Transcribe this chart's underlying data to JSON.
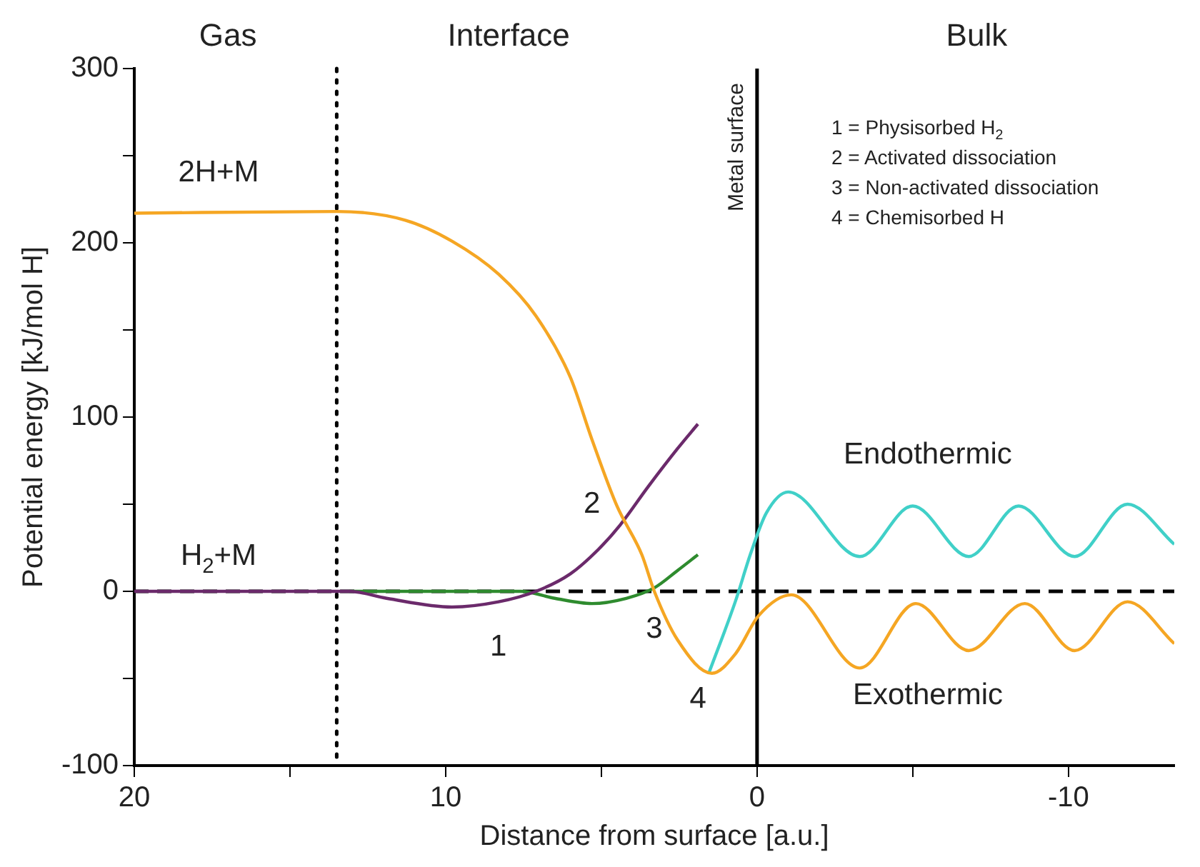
{
  "chart_data": {
    "type": "line",
    "xlabel": "Distance from surface [a.u.]",
    "ylabel": "Potential energy [kJ/mol H]",
    "xlim": [
      20,
      -13.4
    ],
    "xticks": [
      20,
      {
        "value": 15,
        "label": null
      },
      10,
      {
        "value": 5,
        "label": null
      },
      0,
      {
        "value": -5,
        "label": null
      },
      -10
    ],
    "ylim": [
      -100,
      300
    ],
    "yticks": [
      -100,
      {
        "value": -50,
        "label": null
      },
      0,
      {
        "value": 50,
        "label": null
      },
      100,
      {
        "value": 150,
        "label": null
      },
      200,
      {
        "value": 250,
        "label": null
      },
      300
    ],
    "grid": false,
    "legend": false,
    "marker": "none",
    "line_style": "solid",
    "series": [
      {
        "color": "#f5a623",
        "x": [
          20,
          13.5,
          11.3,
          9.8,
          8.3,
          7.1,
          6.0,
          5.3,
          4.5,
          3.7,
          3.3,
          2.55,
          1.45,
          0.7,
          -0.05,
          -1.1,
          -3.3,
          -5.1,
          -6.8,
          -8.6,
          -10.2,
          -11.9,
          -13.4
        ],
        "values": [
          217,
          218,
          213,
          201,
          182,
          158,
          123,
          87,
          49,
          21,
          0,
          -28,
          -47,
          -36,
          -14,
          -2,
          -44,
          -7,
          -34,
          -7,
          -34,
          -6,
          -30
        ]
      },
      {
        "color": "#6b2a6b",
        "x": [
          20,
          13.5,
          13.1,
          11.9,
          9.8,
          8.3,
          7.1,
          6.0,
          5.1,
          4.4,
          3.5,
          2.55,
          1.9
        ],
        "values": [
          0,
          0,
          0,
          -4,
          -9,
          -6,
          0,
          10,
          24,
          38,
          60,
          82,
          96
        ]
      },
      {
        "color": "#2e8b2e",
        "x": [
          13.1,
          9.8,
          7.6,
          6.5,
          5.3,
          4.2,
          3.3,
          2.55,
          1.9
        ],
        "values": [
          0,
          0,
          0,
          -4,
          -7,
          -4,
          2,
          12,
          21
        ]
      },
      {
        "color": "#40d0c8",
        "x": [
          1.55,
          0.7,
          0.2,
          -0.3,
          -1.0,
          -3.3,
          -5.0,
          -6.8,
          -8.4,
          -10.2,
          -11.9,
          -13.4
        ],
        "values": [
          -47,
          -6,
          22,
          45,
          57,
          20,
          49,
          20,
          49,
          20,
          50,
          27
        ]
      }
    ],
    "ref_lines": [
      {
        "axis": "y",
        "value": 0,
        "color": "#000000",
        "line_style": "dashed"
      },
      {
        "axis": "x",
        "value": 0,
        "label": "Metal surface",
        "color": "#000000",
        "line_style": "solid"
      },
      {
        "axis": "x",
        "value": 13.5,
        "color": "#000000",
        "line_style": "dotted"
      }
    ],
    "annotations": [
      "Gas",
      "Interface",
      "Bulk",
      "2H+M",
      "H$_{2}$+M",
      "1",
      "2",
      "3",
      "4",
      "Endothermic",
      "Exothermic",
      "1 = Physisorbed H$_{2}$",
      "2 = Activated dissociation",
      "3 = Non-activated dissociation",
      "4 = Chemisorbed H"
    ]
  }
}
